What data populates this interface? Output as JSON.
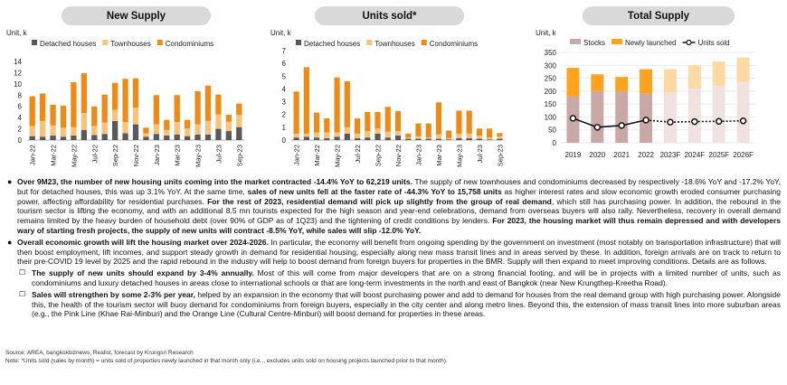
{
  "colors": {
    "detached": "#595959",
    "townhouses": "#f7c27a",
    "condos": "#f08a16",
    "stocks": "#c9a9a6",
    "newly": "#ffa21f",
    "line": "#111111",
    "pill": "#d9d9d9"
  },
  "charts": {
    "new_supply": {
      "title": "New Supply",
      "unit": "Unit, k"
    },
    "units_sold": {
      "title": "Units sold*",
      "unit": "Unit, k"
    },
    "total_supply": {
      "title": "Total Supply",
      "unit": "Unit, k"
    }
  },
  "chart_data": [
    {
      "type": "bar",
      "title": "New Supply",
      "ylabel": "Unit, k",
      "ylim": [
        0,
        14
      ],
      "yticks": [
        0,
        2,
        4,
        6,
        8,
        10,
        12,
        14
      ],
      "stacked": true,
      "categories": [
        "Jan-22",
        "Feb-22",
        "Mar-22",
        "Apr-22",
        "May-22",
        "Jun-22",
        "Jul-22",
        "Aug-22",
        "Sep-22",
        "Oct-22",
        "Nov-22",
        "Dec-22",
        "Jan-23",
        "Feb-23",
        "Mar-23",
        "Apr-23",
        "May-23",
        "Jun-23",
        "Jul-23",
        "Aug-23",
        "Sep-23"
      ],
      "tick_labels": [
        "Jan-22",
        "Mar-22",
        "May-22",
        "Jul-22",
        "Sep-22",
        "Nov-22",
        "Jan-23",
        "Mar-23",
        "May-23",
        "Jul-23",
        "Sep-23"
      ],
      "series": [
        {
          "name": "Detached houses",
          "values": [
            0.7,
            0.6,
            0.8,
            0.6,
            0.8,
            1.8,
            0.9,
            1.1,
            3.4,
            1.2,
            2.8,
            0.6,
            1.1,
            0.8,
            1.0,
            0.7,
            1.0,
            1.0,
            2.0,
            1.6,
            2.3
          ]
        },
        {
          "name": "Townhouses",
          "values": [
            1.8,
            2.8,
            1.8,
            1.6,
            1.5,
            3.0,
            1.6,
            2.0,
            2.0,
            2.0,
            3.0,
            0.6,
            1.7,
            1.0,
            2.2,
            1.4,
            1.8,
            2.4,
            2.6,
            1.7,
            2.2
          ]
        },
        {
          "name": "Condominiums",
          "values": [
            5.3,
            4.9,
            3.7,
            3.9,
            8.0,
            7.1,
            3.5,
            5.0,
            4.8,
            7.7,
            5.2,
            1.0,
            5.2,
            1.8,
            4.8,
            1.5,
            5.9,
            6.3,
            3.5,
            1.2,
            2.0
          ]
        }
      ]
    },
    {
      "type": "bar",
      "title": "Units sold*",
      "ylabel": "Unit, k",
      "ylim": [
        0,
        7
      ],
      "yticks": [
        0,
        1,
        2,
        3,
        4,
        5,
        6,
        7
      ],
      "stacked": true,
      "categories": [
        "Jan-22",
        "Feb-22",
        "Mar-22",
        "Apr-22",
        "May-22",
        "Jun-22",
        "Jul-22",
        "Aug-22",
        "Sep-22",
        "Oct-22",
        "Nov-22",
        "Dec-22",
        "Jan-23",
        "Feb-23",
        "Mar-23",
        "Apr-23",
        "May-23",
        "Jun-23",
        "Jul-23",
        "Aug-23",
        "Sep-23"
      ],
      "tick_labels": [
        "Jan-22",
        "Mar-22",
        "May-22",
        "Jul-22",
        "Sep-22",
        "Nov-22",
        "Jan-23",
        "Mar-23",
        "May-23",
        "Jul-23",
        "Sep-23"
      ],
      "series": [
        {
          "name": "Detached houses",
          "values": [
            0.2,
            0.25,
            0.2,
            0.15,
            0.25,
            0.5,
            0.15,
            0.2,
            0.5,
            0.2,
            0.35,
            0.1,
            0.1,
            0.1,
            0.1,
            0.05,
            0.15,
            0.15,
            0.1,
            0.05,
            0.1
          ]
        },
        {
          "name": "Townhouses",
          "values": [
            0.3,
            0.25,
            0.4,
            0.45,
            0.35,
            0.5,
            0.35,
            0.5,
            0.4,
            0.45,
            0.35,
            0.1,
            0.2,
            0.1,
            0.35,
            0.1,
            0.35,
            0.35,
            0.25,
            0.15,
            0.2
          ]
        },
        {
          "name": "Condominiums",
          "values": [
            3.3,
            5.2,
            1.55,
            1.1,
            4.3,
            3.6,
            1.2,
            1.5,
            1.3,
            1.95,
            1.55,
            0.3,
            1.0,
            1.1,
            2.5,
            0.6,
            1.8,
            1.8,
            0.55,
            0.7,
            0.25
          ]
        }
      ]
    },
    {
      "type": "bar",
      "title": "Total Supply",
      "ylabel": "Unit, k",
      "ylim": [
        0,
        350
      ],
      "yticks": [
        0,
        50,
        100,
        150,
        200,
        250,
        300,
        350
      ],
      "stacked": true,
      "categories": [
        "2019",
        "2020",
        "2021",
        "2022",
        "2023F",
        "2024F",
        "2025F",
        "2026F"
      ],
      "series": [
        {
          "name": "Stocks",
          "values": [
            180,
            200,
            200,
            190,
            195,
            210,
            220,
            235
          ]
        },
        {
          "name": "Newly launched",
          "values": [
            110,
            65,
            55,
            95,
            90,
            90,
            95,
            95
          ]
        },
        {
          "name": "Units sold",
          "type": "line",
          "values": [
            95,
            60,
            67,
            88,
            80,
            82,
            83,
            85
          ],
          "forecast_from": "2022"
        }
      ]
    }
  ],
  "text": {
    "b1_bold1": "Over 9M23, the number of new housing units coming into the market contracted -14.4% YoY to 62,219 units.",
    "b1_t1": " The supply of new townhouses and condominiums decreased by respectively -18.6% YoY and -17.2% YoY, but for detached houses, this was up 3.1% YoY.  At the same time, ",
    "b1_bold2": "sales of new units fell at the faster rate of -44.3% YoY to 15,758 units",
    "b1_t2": " as higher interest rates and slow economic growth eroded consumer purchasing power, affecting affordability for residential purchases. ",
    "b1_bold3": "For the rest of 2023, residential demand will pick up slightly from the group of real demand",
    "b1_t3": ", which still has purchasing power. In addition, the rebound in the tourism sector is lifting the economy, and with an additional 8.5 mn tourists expected for the high season and year-end celebrations, demand from overseas buyers will also rally. Nevertheless, recovery in overall demand remains limited by the heavy burden of household debt (over 90% of GDP as of 1Q23) and the tightening of credit conditions by lenders. ",
    "b1_bold4": "For 2023, the housing market will thus remain depressed and with developers wary of starting fresh projects, the supply of new units will contract -8.5% YoY, while sales will slip -12.0% YoY.",
    "b2_bold1": "Overall economic growth will lift the housing market over 2024-2026.",
    "b2_t1": " In particular, the economy will benefit from ongoing spending by the government on investment (most notably on transportation infrastructure) that will then boost employment, lift incomes, and support steady growth in demand for residential housing, especially along new mass transit lines and in areas served by these. In addition, foreign arrivals are on track to return to their pre-COVID 19 level by 2025 and the rapid rebound in the industry will help to boost demand from foreign buyers for properties in the BMR. Supply will then expand to meet improving conditions. Details are as follows.",
    "s1_bold": "The supply of new units should expand by 3-4% annually.",
    "s1_t": " Most of this will come from major developers that are on a strong financial footing, and will be in projects with a limited number of units, such as condominiums and luxury detached houses in areas close to international schools or that are long-term investments in the north and east of Bangkok (near New Krungthep-Kreetha Road).",
    "s2_bold": "Sales will strengthen by some 2-3% per year,",
    "s2_t": " helped by an expansion in the economy that will boost purchasing power and add to demand for houses from the real demand group with high purchasing power. Alongside this, the health of the tourism sector will buoy demand for condominiums from foreign buyers, especially in the city center and along metro lines. Beyond this, the extension of mass transit lines into more suburban areas (e.g., the Pink Line (Khae Rai-Minburi) and the Orange Line (Cultural Centre-Minburi) will boost demand for properties in these areas.",
    "source": "Source: AREA, bangkokbiznews, Realist, forecast by Krungsri Research",
    "note": "Note:  *Units sold (sales by month) = units sold of properties newly launched in that month only (i.e.., excludes units sold on housing projects launched prior to that month)."
  }
}
